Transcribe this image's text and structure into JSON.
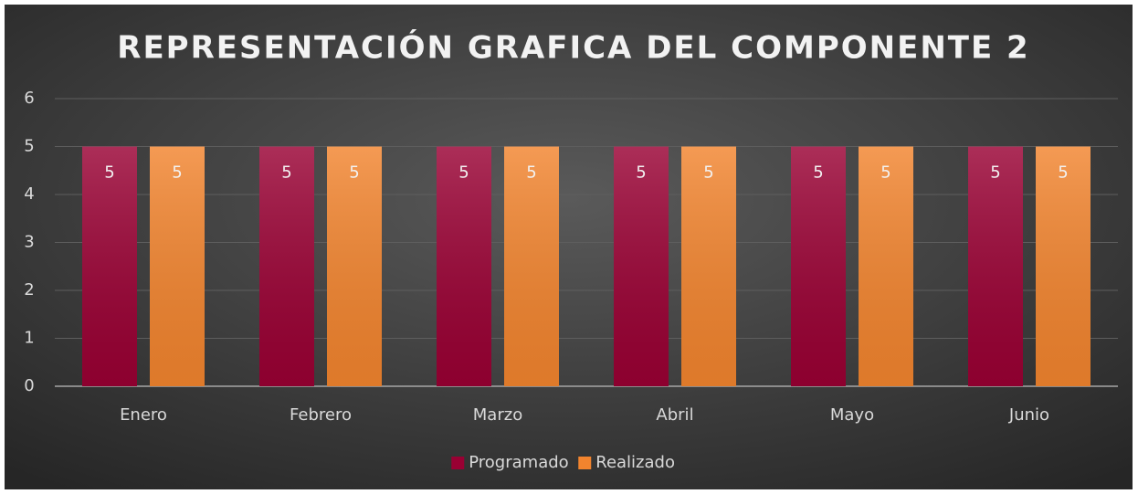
{
  "chart_data": {
    "type": "bar",
    "title": "REPRESENTACIÓN GRAFICA DEL COMPONENTE 2",
    "categories": [
      "Enero",
      "Febrero",
      "Marzo",
      "Abril",
      "Mayo",
      "Junio"
    ],
    "series": [
      {
        "name": "Programado",
        "color": "#990033",
        "values": [
          5,
          5,
          5,
          5,
          5,
          5
        ]
      },
      {
        "name": "Realizado",
        "color": "#f2842e",
        "values": [
          5,
          5,
          5,
          5,
          5,
          5
        ]
      }
    ],
    "ylim": [
      0,
      6
    ],
    "yticks": [
      0,
      1,
      2,
      3,
      4,
      5,
      6
    ],
    "grid": true,
    "legend": "bottom"
  }
}
